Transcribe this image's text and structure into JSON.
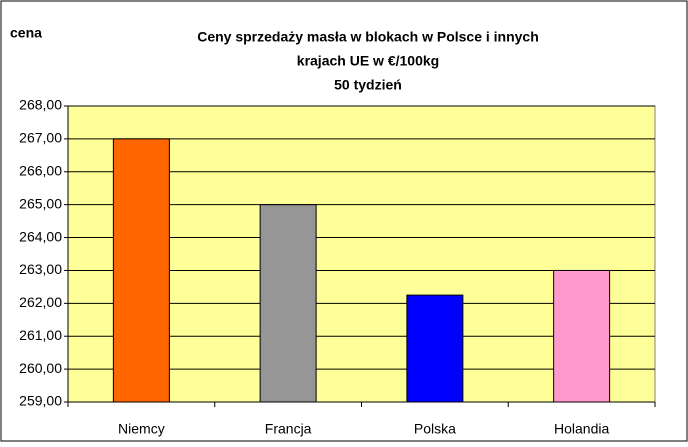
{
  "chart_data": {
    "type": "bar",
    "title": [
      "Ceny sprzedaży masła w blokach w Polsce i  innych",
      "krajach UE w €/100kg",
      "50 tydzień"
    ],
    "y_label": "cena",
    "categories": [
      "Niemcy",
      "Francja",
      "Polska",
      "Holandia"
    ],
    "series": [
      {
        "name": null,
        "values": [
          267,
          265,
          262.25,
          263
        ],
        "colors": [
          "#ff6600",
          "#969696",
          "#0000ff",
          "#ff99cc"
        ]
      }
    ],
    "ylim": [
      259,
      268
    ],
    "yticks": [
      {
        "value": 259,
        "label": "259,00"
      },
      {
        "value": 260,
        "label": "260,00"
      },
      {
        "value": 261,
        "label": "261,00"
      },
      {
        "value": 262,
        "label": "262,00"
      },
      {
        "value": 263,
        "label": "263,00"
      },
      {
        "value": 264,
        "label": "264,00"
      },
      {
        "value": 265,
        "label": "265,00"
      },
      {
        "value": 266,
        "label": "266,00"
      },
      {
        "value": 267,
        "label": "267,00"
      },
      {
        "value": 268,
        "label": "268,00"
      }
    ],
    "grid": true,
    "plot_background": "#ffff99"
  }
}
